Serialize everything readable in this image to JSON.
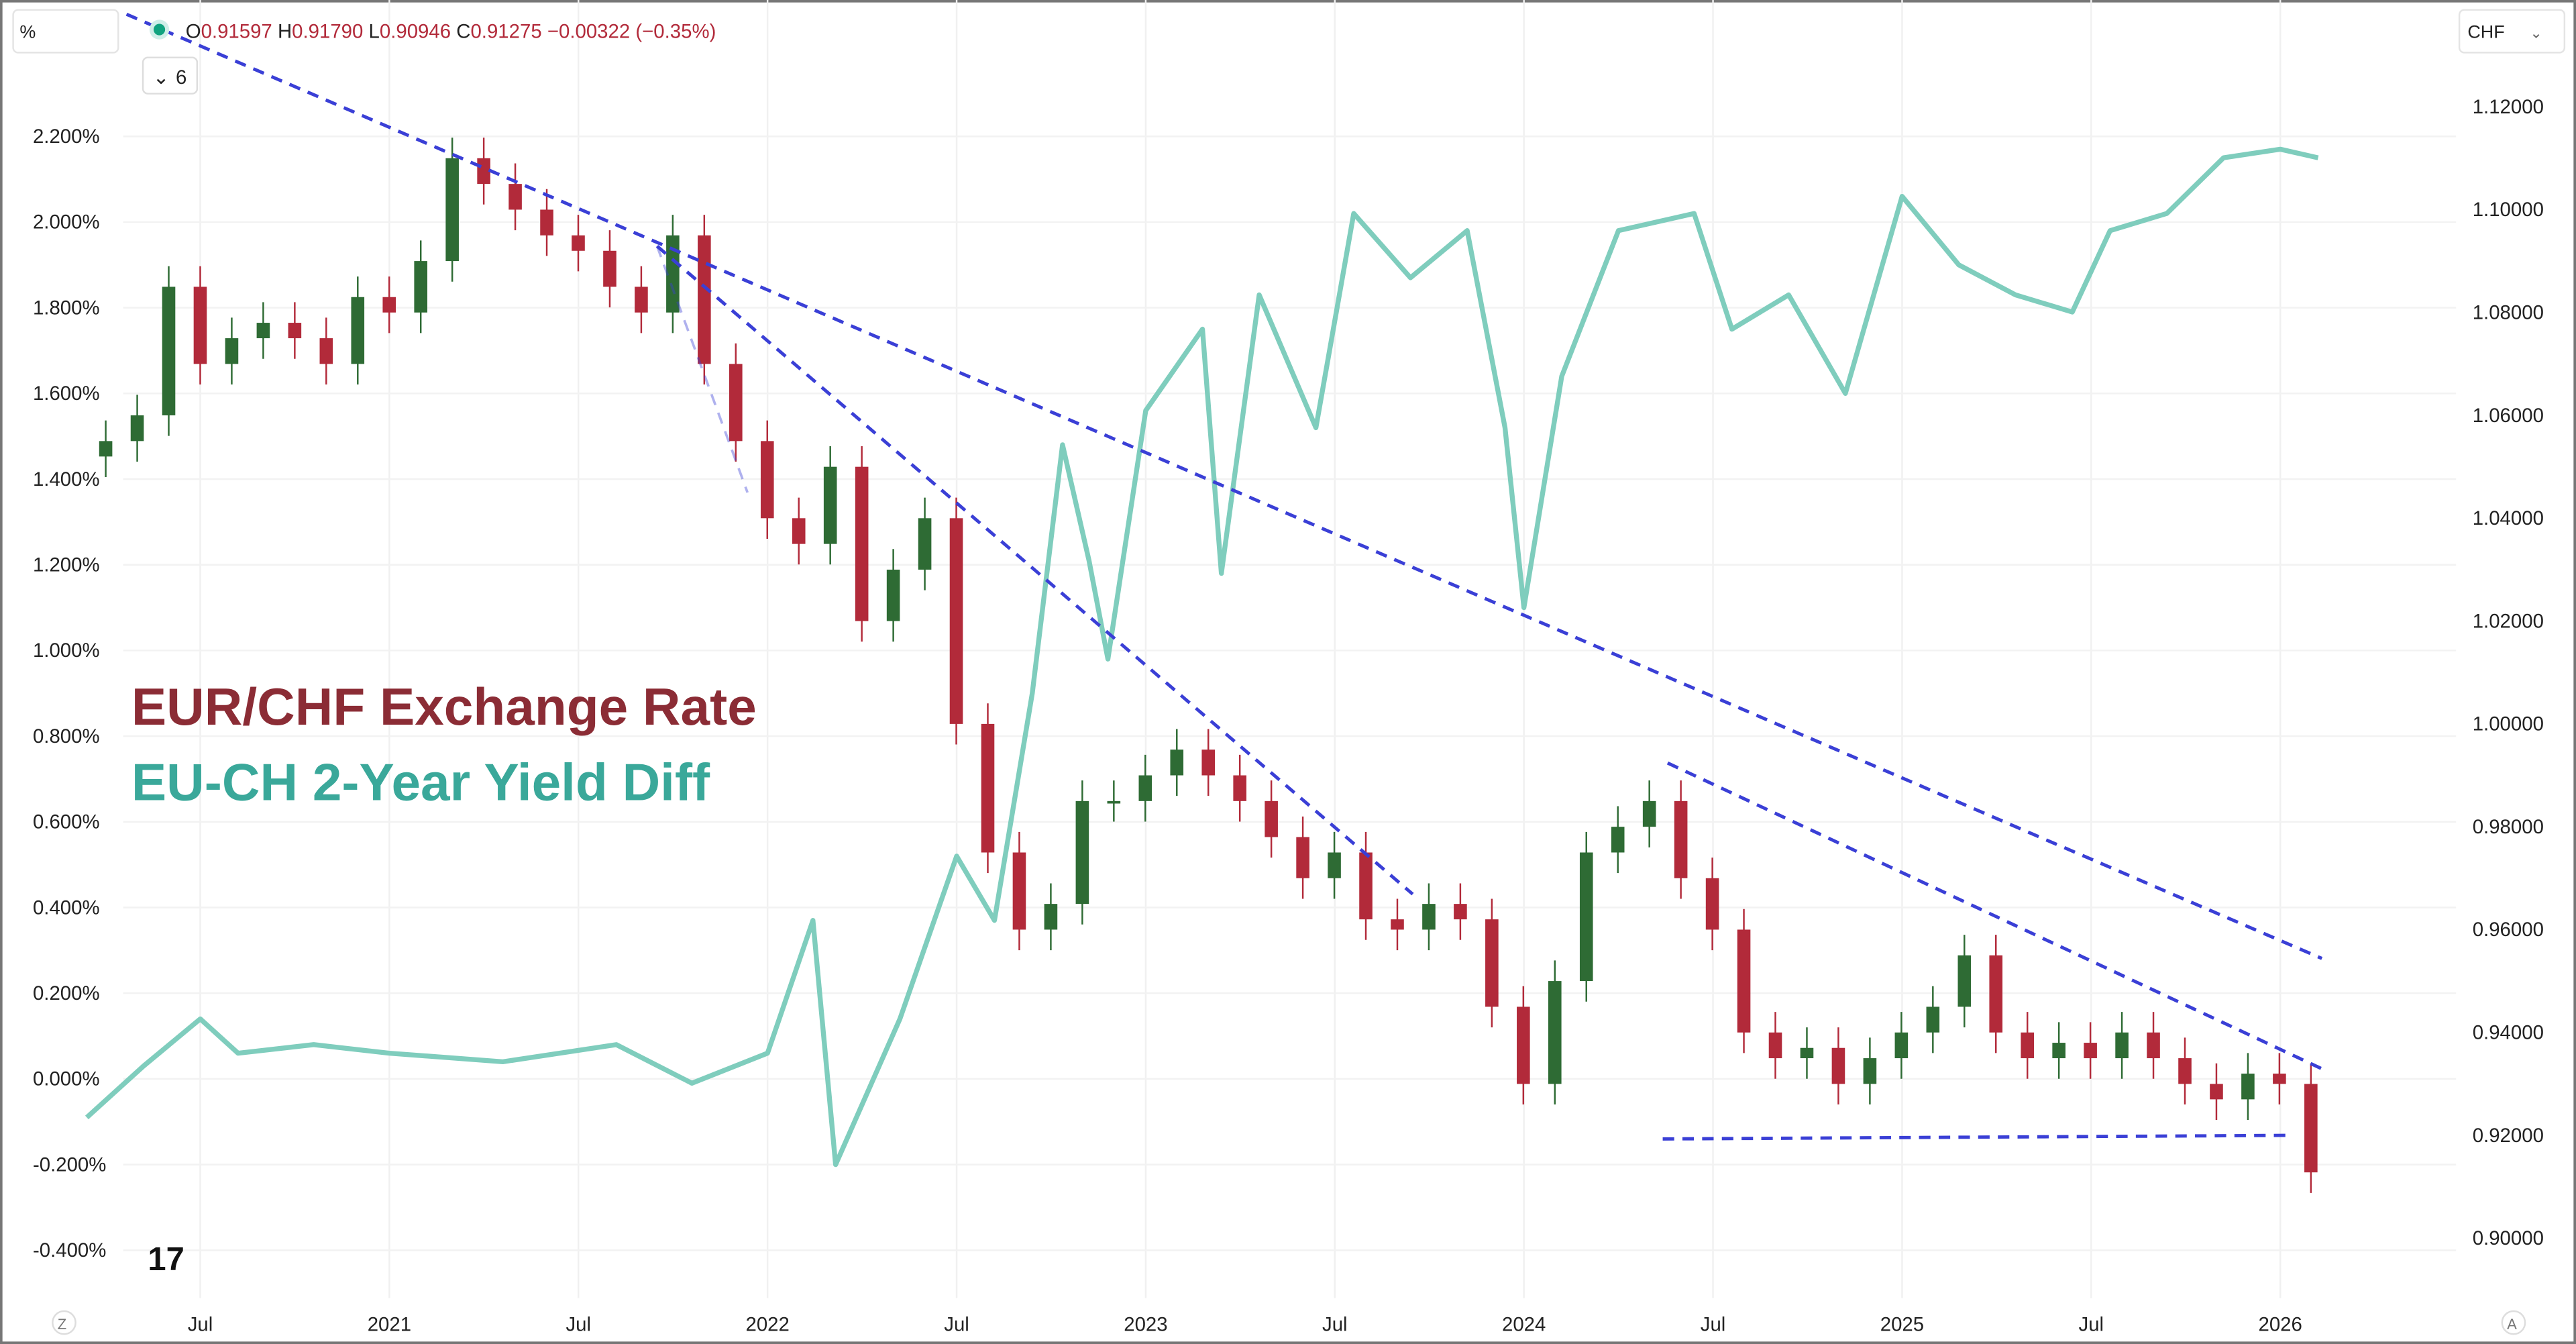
{
  "header": {
    "left_unit": "%",
    "ohlc": {
      "open_label": "O",
      "open": "0.91597",
      "high_label": "H",
      "high": "0.91790",
      "low_label": "L",
      "low": "0.90946",
      "close_label": "C",
      "close": "0.91275",
      "change": "−0.00322 (−0.35%)"
    },
    "indicator_toggle": "6",
    "right_unit": "CHF",
    "logo_text": "TV",
    "bottom_left_button": "Z",
    "bottom_right_button": "A"
  },
  "colors": {
    "up": "#2e6b34",
    "down": "#b22a3a",
    "yield": "#7fcdbd",
    "trend": "#3a3fd6",
    "title1": "#8b2c35",
    "title2": "#3aa89a"
  },
  "chart_data": {
    "type": "candlestick+line",
    "titles": [
      "EUR/CHF Exchange Rate",
      "EU-CH 2-Year Yield Diff"
    ],
    "x_ticks": [
      {
        "t": 2020.5,
        "label": "Jul"
      },
      {
        "t": 2021.0,
        "label": "2021"
      },
      {
        "t": 2021.5,
        "label": "Jul"
      },
      {
        "t": 2022.0,
        "label": "2022"
      },
      {
        "t": 2022.5,
        "label": "Jul"
      },
      {
        "t": 2023.0,
        "label": "2023"
      },
      {
        "t": 2023.5,
        "label": "Jul"
      },
      {
        "t": 2024.0,
        "label": "2024"
      },
      {
        "t": 2024.5,
        "label": "Jul"
      },
      {
        "t": 2025.0,
        "label": "2025"
      },
      {
        "t": 2025.5,
        "label": "Jul"
      },
      {
        "t": 2026.0,
        "label": "2026"
      }
    ],
    "left_axis": {
      "range": [
        -0.4,
        2.2
      ],
      "ticks": [
        "2.200%",
        "2.000%",
        "1.800%",
        "1.600%",
        "1.400%",
        "1.200%",
        "1.000%",
        "0.800%",
        "0.600%",
        "0.400%",
        "0.200%",
        "0.000%",
        "-0.200%",
        "-0.400%"
      ]
    },
    "right_axis": {
      "range": [
        0.9,
        1.12
      ],
      "ticks": [
        "1.12000",
        "1.10000",
        "1.08000",
        "1.06000",
        "1.04000",
        "1.02000",
        "1.00000",
        "0.98000",
        "0.96000",
        "0.94000",
        "0.92000",
        "0.90000"
      ]
    },
    "eurchf": {
      "start": 2020.25,
      "step_years": 0.0833,
      "closes": [
        1.055,
        1.06,
        1.085,
        1.07,
        1.075,
        1.078,
        1.075,
        1.07,
        1.083,
        1.08,
        1.09,
        1.11,
        1.105,
        1.1,
        1.095,
        1.092,
        1.085,
        1.08,
        1.095,
        1.07,
        1.055,
        1.04,
        1.035,
        1.05,
        1.02,
        1.03,
        1.04,
        1.0,
        0.975,
        0.96,
        0.965,
        0.985,
        0.985,
        0.99,
        0.995,
        0.99,
        0.985,
        0.978,
        0.97,
        0.975,
        0.962,
        0.96,
        0.965,
        0.962,
        0.945,
        0.93,
        0.95,
        0.975,
        0.98,
        0.985,
        0.97,
        0.96,
        0.94,
        0.935,
        0.937,
        0.93,
        0.935,
        0.94,
        0.945,
        0.955,
        0.94,
        0.935,
        0.938,
        0.935,
        0.94,
        0.935,
        0.93,
        0.927,
        0.932,
        0.93,
        0.9128
      ]
    },
    "yield_diff": {
      "t": [
        2020.2,
        2020.35,
        2020.5,
        2020.6,
        2020.8,
        2021.0,
        2021.3,
        2021.6,
        2021.8,
        2022.0,
        2022.12,
        2022.18,
        2022.35,
        2022.5,
        2022.6,
        2022.7,
        2022.78,
        2022.85,
        2022.9,
        2023.0,
        2023.15,
        2023.2,
        2023.3,
        2023.45,
        2023.55,
        2023.7,
        2023.85,
        2023.95,
        2024.0,
        2024.1,
        2024.25,
        2024.45,
        2024.55,
        2024.7,
        2024.85,
        2025.0,
        2025.15,
        2025.3,
        2025.45,
        2025.55,
        2025.7,
        2025.85,
        2026.0,
        2026.1
      ],
      "values": [
        -0.09,
        0.03,
        0.14,
        0.06,
        0.08,
        0.06,
        0.04,
        0.08,
        -0.01,
        0.06,
        0.37,
        -0.2,
        0.14,
        0.52,
        0.37,
        0.9,
        1.48,
        1.21,
        0.98,
        1.56,
        1.75,
        1.18,
        1.83,
        1.52,
        2.02,
        1.87,
        1.98,
        1.52,
        1.1,
        1.64,
        1.98,
        2.02,
        1.75,
        1.83,
        1.6,
        2.06,
        1.9,
        1.83,
        1.79,
        1.98,
        2.02,
        2.15,
        2.17,
        2.15
      ]
    },
    "trendlines_eurchf": [
      {
        "from": [
          2020.305,
          1.138
        ],
        "to": [
          2026.11,
          0.9544
        ]
      },
      {
        "from": [
          2021.708,
          1.0929
        ],
        "to": [
          2023.706,
          0.9669
        ]
      },
      {
        "from": [
          2024.38,
          0.9924
        ],
        "to": [
          2026.117,
          0.9327
        ]
      },
      {
        "from": [
          2021.708,
          1.0929
        ],
        "to": [
          2021.947,
          1.045
        ],
        "faint": true
      },
      {
        "from": [
          2024.367,
          0.9193
        ],
        "to": [
          2026.035,
          0.92
        ]
      }
    ],
    "grid": true
  }
}
